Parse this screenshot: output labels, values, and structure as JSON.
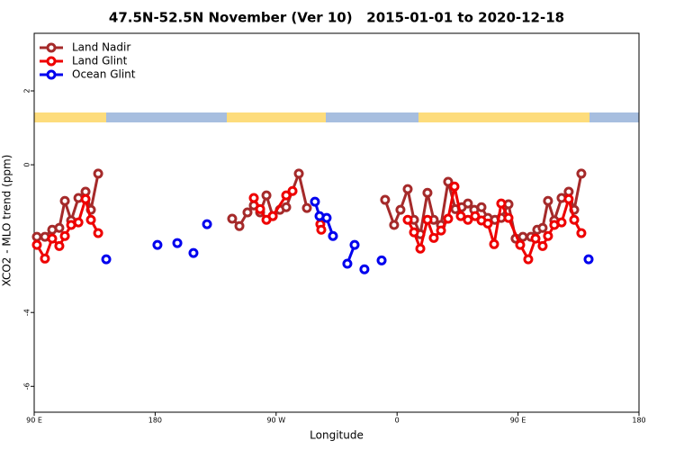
{
  "chart_data": {
    "type": "line",
    "title": "47.5N-52.5N November (Ver 10)   2015-01-01 to 2020-12-18",
    "xlabel": "Longitude",
    "ylabel": "XCO2 - MLO trend (ppm)",
    "xlim": [
      90,
      540
    ],
    "ylim": [
      -6.7,
      3.56
    ],
    "xticks": [
      {
        "value": 90,
        "label": "90 E"
      },
      180,
      {
        "value": 270,
        "label": "90 W"
      },
      {
        "value": 360,
        "label": "0"
      },
      {
        "value": 450,
        "label": "90 E"
      },
      {
        "value": 540,
        "label": "180"
      }
    ],
    "yticks": [
      2,
      0,
      -4,
      -6
    ],
    "legend": "top-left",
    "series": [
      {
        "name": "Land Nadir",
        "color": "#a52a2a",
        "x": [
          92.0,
          98.0,
          103.4,
          108.7,
          112.8,
          117.5,
          122.9,
          128.2,
          132.2,
          137.6,
          null,
          237.3,
          242.7,
          248.7,
          253.4,
          258.1,
          262.8,
          267.5,
          272.8,
          277.5,
          286.9,
          292.9,
          null,
          351.1,
          357.8,
          362.5,
          367.9,
          372.6,
          377.3,
          382.6,
          387.3,
          392.7,
          398.0,
          403.4,
          408.1,
          412.7,
          417.4,
          422.8,
          427.5,
          432.8,
          437.5,
          442.9,
          448.2,
          453.6,
          459.6,
          464.3,
          468.3,
          472.3,
          477.0,
          482.4,
          487.7,
          491.8,
          497.1
        ],
        "values": [
          -1.95,
          -1.95,
          -1.76,
          -1.71,
          -0.98,
          -1.51,
          -0.9,
          -0.73,
          -1.22,
          -0.24,
          null,
          -1.46,
          -1.66,
          -1.29,
          -1.1,
          -1.29,
          -0.83,
          -1.39,
          -1.22,
          -1.15,
          -0.24,
          -1.17,
          null,
          -0.95,
          -1.63,
          -1.22,
          -0.66,
          -1.49,
          -1.88,
          -0.76,
          -1.49,
          -1.63,
          -0.46,
          -1.2,
          -1.15,
          -1.05,
          -1.22,
          -1.15,
          -1.44,
          -1.49,
          -1.44,
          -1.07,
          -2.0,
          -1.95,
          -1.95,
          -1.76,
          -1.71,
          -0.98,
          -1.51,
          -0.9,
          -0.73,
          -1.22,
          -0.24
        ]
      },
      {
        "name": "Land Glint",
        "color": "#ee0000",
        "x": [
          92.0,
          98.0,
          103.4,
          108.7,
          112.8,
          117.5,
          122.9,
          128.2,
          132.2,
          137.6,
          null,
          253.4,
          258.1,
          262.8,
          267.5,
          277.5,
          282.2,
          null,
          302.9,
          303.6,
          null,
          367.9,
          372.6,
          377.3,
          382.6,
          387.3,
          392.7,
          398.0,
          402.7,
          407.4,
          412.7,
          418.1,
          422.8,
          427.5,
          432.2,
          437.5,
          442.9,
          451.6,
          457.6,
          463.0,
          468.3,
          472.3,
          477.0,
          482.4,
          487.7,
          491.8,
          497.1
        ],
        "values": [
          -2.17,
          -2.54,
          -2.0,
          -2.2,
          -1.93,
          -1.63,
          -1.56,
          -0.93,
          -1.49,
          -1.85,
          null,
          -0.9,
          -1.2,
          -1.49,
          -1.39,
          -0.83,
          -0.71,
          null,
          -1.61,
          -1.76,
          null,
          -1.49,
          -1.83,
          -2.27,
          -1.49,
          -1.98,
          -1.78,
          -1.46,
          -0.59,
          -1.39,
          -1.49,
          -1.39,
          -1.51,
          -1.59,
          -2.15,
          -1.05,
          -1.44,
          -2.17,
          -2.56,
          -2.0,
          -2.2,
          -1.93,
          -1.63,
          -1.56,
          -0.93,
          -1.49,
          -1.85
        ]
      },
      {
        "name": "Ocean Glint",
        "color": "#0000ee",
        "x": [
          143.6,
          null,
          181.7,
          null,
          196.5,
          null,
          208.5,
          null,
          218.6,
          null,
          298.9,
          302.3,
          307.6,
          312.3,
          null,
          323.0,
          328.4,
          null,
          335.7,
          null,
          348.5,
          null,
          502.5
        ],
        "values": [
          -2.56,
          null,
          -2.17,
          null,
          -2.12,
          null,
          -2.39,
          null,
          -1.61,
          null,
          -1.0,
          -1.39,
          -1.44,
          -1.93,
          null,
          -2.68,
          -2.17,
          null,
          -2.83,
          null,
          -2.59,
          null,
          -2.56
        ]
      }
    ]
  }
}
